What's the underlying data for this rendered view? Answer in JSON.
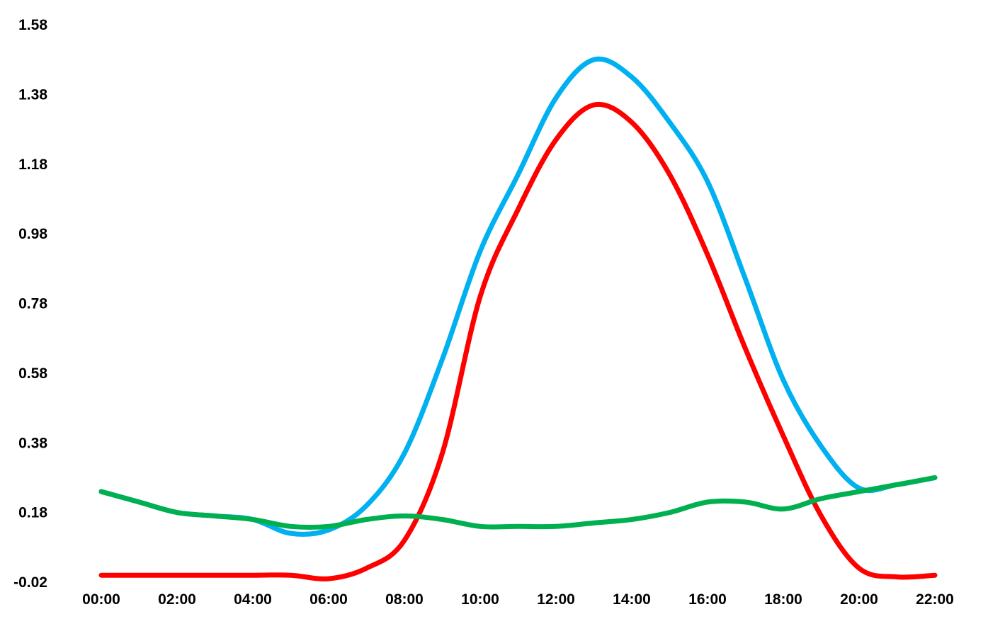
{
  "chart_data": {
    "type": "line",
    "title": "",
    "xlabel": "",
    "ylabel": "",
    "ylim": [
      -0.02,
      1.58
    ],
    "grid": false,
    "legend": "none",
    "x": [
      "00:00",
      "01:00",
      "02:00",
      "03:00",
      "04:00",
      "05:00",
      "06:00",
      "07:00",
      "08:00",
      "09:00",
      "10:00",
      "11:00",
      "12:00",
      "13:00",
      "14:00",
      "15:00",
      "16:00",
      "17:00",
      "18:00",
      "19:00",
      "20:00",
      "21:00",
      "22:00"
    ],
    "x_tick_labels": [
      "00:00",
      "02:00",
      "04:00",
      "06:00",
      "08:00",
      "10:00",
      "12:00",
      "14:00",
      "16:00",
      "18:00",
      "20:00",
      "22:00"
    ],
    "y_tick_labels": [
      "-0.02",
      "0.18",
      "0.38",
      "0.58",
      "0.78",
      "0.98",
      "1.18",
      "1.38",
      "1.58"
    ],
    "series": [
      {
        "color": "#00b0f0",
        "values": [
          0.24,
          0.21,
          0.18,
          0.17,
          0.16,
          0.12,
          0.13,
          0.2,
          0.35,
          0.62,
          0.93,
          1.15,
          1.37,
          1.48,
          1.43,
          1.3,
          1.13,
          0.85,
          0.56,
          0.37,
          0.25,
          0.26,
          0.28
        ]
      },
      {
        "color": "#ff0000",
        "values": [
          0.0,
          0.0,
          0.0,
          0.0,
          0.0,
          0.0,
          -0.01,
          0.02,
          0.1,
          0.35,
          0.8,
          1.05,
          1.25,
          1.35,
          1.3,
          1.15,
          0.92,
          0.65,
          0.4,
          0.17,
          0.02,
          -0.005,
          0.0
        ]
      },
      {
        "color": "#00b050",
        "values": [
          0.24,
          0.21,
          0.18,
          0.17,
          0.16,
          0.14,
          0.14,
          0.16,
          0.17,
          0.16,
          0.14,
          0.14,
          0.14,
          0.15,
          0.16,
          0.18,
          0.21,
          0.21,
          0.19,
          0.22,
          0.24,
          0.26,
          0.28
        ]
      }
    ]
  }
}
